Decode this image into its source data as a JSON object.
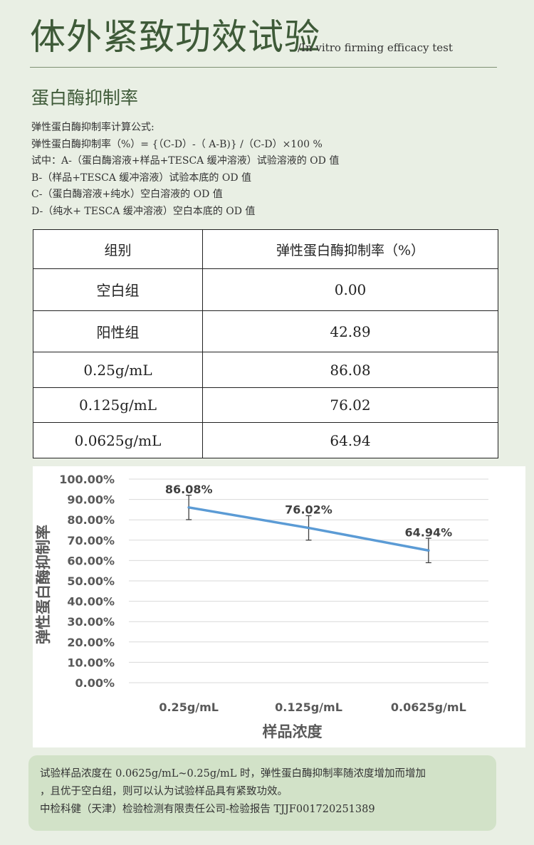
{
  "header": {
    "title": "体外紧致功效试验",
    "subtitle": "/In vitro firming efficacy test"
  },
  "section": {
    "title": "蛋白酶抑制率"
  },
  "formula": {
    "line1": "弹性蛋白酶抑制率计算公式:",
    "line2": "弹性蛋白酶抑制率（%）= {（C-D）-（ A-B)} /（C-D）×100 %",
    "line3": "试中：A-（蛋白酶溶液+样品+TESCA 缓冲溶液）试验溶液的 OD 值",
    "line4": " B-（样品+TESCA 缓冲溶液）试验本底的 OD 值",
    "line5": " C-（蛋白酶溶液+纯水）空白溶液的 OD 值",
    "line6": " D-（纯水+ TESCA 缓冲溶液）空白本底的 OD 值"
  },
  "table": {
    "headers": [
      "组别",
      "弹性蛋白酶抑制率（%）"
    ],
    "rows": [
      [
        "空白组",
        "0.00"
      ],
      [
        "阳性组",
        "42.89"
      ],
      [
        "0.25g/mL",
        "86.08"
      ],
      [
        "0.125g/mL",
        "76.02"
      ],
      [
        "0.0625g/mL",
        "64.94"
      ]
    ]
  },
  "chart_data": {
    "type": "line",
    "categories": [
      "0.25g/mL",
      "0.125g/mL",
      "0.0625g/mL"
    ],
    "values": [
      86.08,
      76.02,
      64.94
    ],
    "data_labels": [
      "86.08%",
      "76.02%",
      "64.94%"
    ],
    "error_bars": [
      6,
      6,
      6
    ],
    "xlabel": "样品浓度",
    "ylabel": "弹性蛋白酶抑制率",
    "ylim": [
      0,
      100
    ],
    "yticks": [
      "0.00%",
      "10.00%",
      "20.00%",
      "30.00%",
      "40.00%",
      "50.00%",
      "60.00%",
      "70.00%",
      "80.00%",
      "90.00%",
      "100.00%"
    ],
    "grid": true,
    "line_color": "#5b9bd5"
  },
  "note": {
    "line1": "试验样品浓度在 0.0625g/mL~0.25g/mL 时，弹性蛋白酶抑制率随浓度增加而增加",
    "line2": "，且优于空白组，则可以认为试验样品具有紧致功效。",
    "line3": "中检科健（天津）检验检测有限责任公司-检验报告 TJJF001720251389"
  }
}
